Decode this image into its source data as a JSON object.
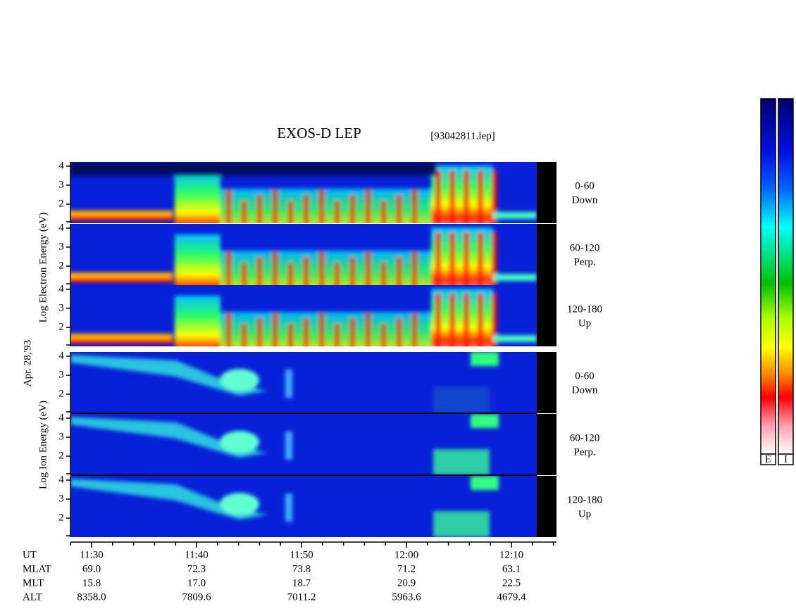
{
  "title": "EXOS-D LEP",
  "file": "[93042811.lep]",
  "date": "Apr. 28,'93",
  "electron_label": "Log Electron Energy (eV)",
  "ion_label": "Log Ion Energy (eV)",
  "energy_ticks": [
    "4",
    "3",
    "2"
  ],
  "pitch_bins": [
    {
      "angle": "0-60",
      "direction": "Down"
    },
    {
      "angle": "60-120",
      "direction": "Perp."
    },
    {
      "angle": "120-180",
      "direction": "Up"
    }
  ],
  "time_axis": {
    "row_labels": [
      "UT",
      "MLAT",
      "MLT",
      "ALT"
    ],
    "ut": [
      "11:30",
      "11:40",
      "11:50",
      "12:00",
      "12:10"
    ],
    "mlat": [
      "69.0",
      "72.3",
      "73.8",
      "71.2",
      "63.1"
    ],
    "mlt": [
      "15.8",
      "17.0",
      "18.7",
      "20.9",
      "22.5"
    ],
    "alt": [
      "8358.0",
      "7809.6",
      "7011.2",
      "5963.6",
      "4679.4"
    ]
  },
  "colorbar_labels": [
    "E",
    "I"
  ]
}
